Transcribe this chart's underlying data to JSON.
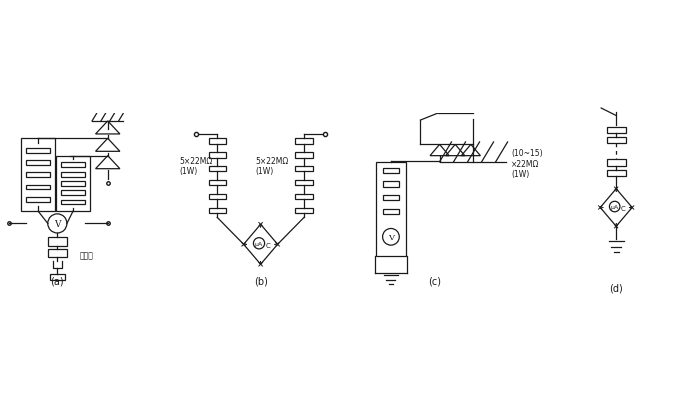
{
  "background": "#ffffff",
  "line_color": "#1a1a1a",
  "labels": {
    "a": "(a)",
    "b": "(b)",
    "c": "(c)",
    "d": "(d)",
    "jueyan": "绵缘杆",
    "res_b_left": "5×22MΩ\n(1W)",
    "res_b_right": "5×22MΩ\n(1W)",
    "res_d": "(10~15)\n×22MΩ\n(1W)"
  },
  "fig_width": 6.95,
  "fig_height": 4.06,
  "dpi": 100
}
